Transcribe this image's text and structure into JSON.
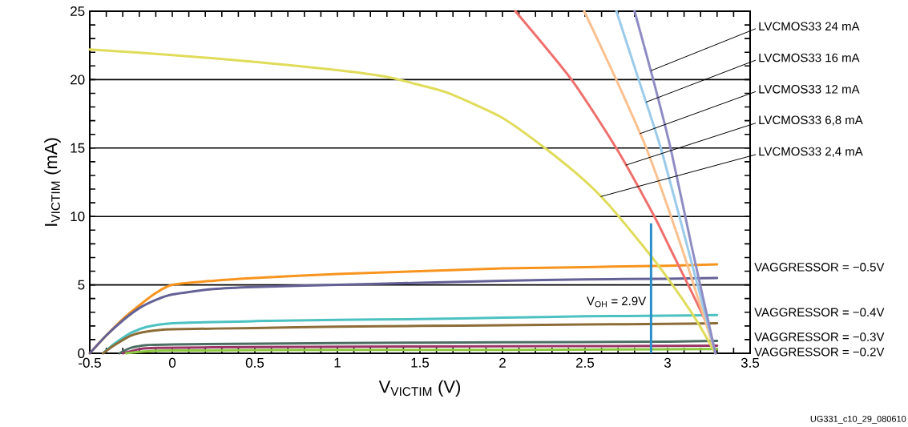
{
  "chart_data": {
    "type": "line",
    "xlabel": "V$_{VICTIM}$ (V)",
    "ylabel": "I$_{VICTIM}$ (mA)",
    "xlim": [
      -0.5,
      3.5
    ],
    "ylim": [
      0,
      25
    ],
    "xticks": [
      -0.5,
      0,
      0.5,
      1,
      1.5,
      2,
      2.5,
      3,
      3.5
    ],
    "yticks": [
      0,
      5,
      10,
      15,
      20,
      25
    ],
    "grid": "y",
    "marker": "none",
    "line_style": "solid",
    "series": [
      {
        "color": "#f7941d",
        "x": [
          -0.5,
          -0.4,
          -0.3,
          -0.2,
          -0.1,
          0,
          0.25,
          0.5,
          1,
          1.5,
          2,
          2.5,
          3,
          3.3
        ],
        "values": [
          0,
          1.3,
          2.5,
          3.5,
          4.4,
          5.0,
          5.3,
          5.5,
          5.8,
          6.0,
          6.2,
          6.3,
          6.4,
          6.5
        ]
      },
      {
        "color": "#636195",
        "x": [
          -0.5,
          -0.4,
          -0.3,
          -0.2,
          -0.1,
          0,
          0.25,
          0.5,
          1,
          1.5,
          2,
          2.5,
          3,
          3.3
        ],
        "values": [
          0,
          1.3,
          2.4,
          3.3,
          3.9,
          4.3,
          4.7,
          4.85,
          5.0,
          5.15,
          5.3,
          5.4,
          5.45,
          5.5
        ]
      },
      {
        "color": "#4cc1c1",
        "x": [
          -0.42,
          -0.35,
          -0.25,
          -0.15,
          0,
          0.5,
          1,
          1.5,
          2,
          2.5,
          3,
          3.3
        ],
        "values": [
          0,
          0.7,
          1.5,
          1.95,
          2.2,
          2.35,
          2.45,
          2.5,
          2.6,
          2.7,
          2.75,
          2.8
        ]
      },
      {
        "color": "#8c6d37",
        "x": [
          -0.42,
          -0.35,
          -0.25,
          -0.15,
          0,
          0.5,
          1,
          1.5,
          2,
          2.5,
          3,
          3.3
        ],
        "values": [
          0,
          0.6,
          1.3,
          1.6,
          1.75,
          1.85,
          1.95,
          2.0,
          2.05,
          2.1,
          2.15,
          2.2
        ]
      },
      {
        "color": "#4c6e62",
        "x": [
          -0.32,
          -0.25,
          -0.15,
          0,
          1,
          2,
          3,
          3.3
        ],
        "values": [
          0,
          0.4,
          0.6,
          0.65,
          0.75,
          0.8,
          0.85,
          0.9
        ]
      },
      {
        "color": "#9a3566",
        "x": [
          -0.3,
          -0.2,
          -0.1,
          0.5,
          1.5,
          3.3
        ],
        "values": [
          0,
          0.3,
          0.4,
          0.45,
          0.5,
          0.55
        ]
      },
      {
        "color": "#8dc63f",
        "x": [
          -0.28,
          -0.15,
          0,
          1,
          2,
          3.3
        ],
        "values": [
          0,
          0.15,
          0.2,
          0.25,
          0.25,
          0.3
        ]
      },
      {
        "name": "LVCMOS33 2,4 mA",
        "color": "#e0dc5a",
        "x": [
          -0.5,
          0,
          0.5,
          1,
          1.3,
          1.5,
          1.675,
          2,
          2.257,
          2.5,
          2.64,
          2.854,
          3,
          3.165,
          3.29
        ],
        "values": [
          22.2,
          21.8,
          21.3,
          20.7,
          20.2,
          19.6,
          19.0,
          17.2,
          15.0,
          12.6,
          10.9,
          7.8,
          5.5,
          2.6,
          0
        ]
      },
      {
        "name": "LVCMOS33 6,8 mA",
        "color": "#ef6f6c",
        "x": [
          2.078,
          2.418,
          2.694,
          2.92,
          3.01,
          3.228,
          3.29
        ],
        "values": [
          25,
          20,
          14.9,
          10,
          7.8,
          2.4,
          0
        ]
      },
      {
        "name": "LVCMOS33 12 mA",
        "color": "#fbc08f",
        "x": [
          2.495,
          2.689,
          2.874,
          3.083,
          3.29
        ],
        "values": [
          25,
          20,
          14.9,
          7.8,
          0
        ]
      },
      {
        "name": "LVCMOS33 16 mA",
        "color": "#9acbea",
        "x": [
          2.69,
          2.825,
          2.961,
          3.12,
          3.29
        ],
        "values": [
          25,
          20,
          14.9,
          7.8,
          0
        ]
      },
      {
        "name": "LVCMOS33 24 mA",
        "color": "#8e8cc4",
        "x": [
          2.8,
          2.913,
          3.02,
          3.146,
          3.29
        ],
        "values": [
          25,
          20,
          14.9,
          7.8,
          0
        ]
      }
    ],
    "ref_lines": [
      {
        "axis": "x",
        "value": 2.9,
        "label": "V$_{OH}$ = 2.9V",
        "color": "#2a8fc9"
      }
    ],
    "annotations": [
      "VAGGRESSOR = −0.5V",
      "VAGGRESSOR = −0.4V",
      "VAGGRESSOR = −0.3V",
      "VAGGRESSOR = −0.2V",
      "UG331_c10_29_080610"
    ]
  }
}
